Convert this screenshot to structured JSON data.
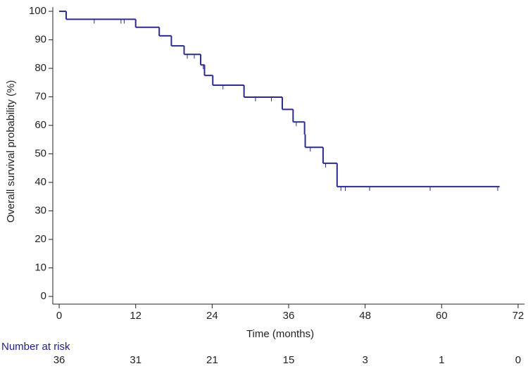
{
  "chart_data": {
    "type": "kaplan-meier",
    "xlabel": "Time (months)",
    "ylabel": "Overall survival probability (%)",
    "xlim": [
      -1,
      73
    ],
    "ylim": [
      -2.7,
      101.5
    ],
    "xticks": [
      0,
      12,
      24,
      36,
      48,
      60,
      72
    ],
    "yticks": [
      0,
      10,
      20,
      30,
      40,
      50,
      60,
      70,
      80,
      90,
      100
    ],
    "color": "#2b2b8c",
    "x": [
      0,
      1.1,
      12,
      15.7,
      17.6,
      19.6,
      22.2,
      22.8,
      24.1,
      29,
      35,
      36.7,
      38.5,
      38.6,
      41.4,
      43.6,
      69.1
    ],
    "values": [
      100,
      97.2,
      94.4,
      91.4,
      87.9,
      84.9,
      81.2,
      77.5,
      74.1,
      69.9,
      65.6,
      61.2,
      56.8,
      52.3,
      46.7,
      38.5,
      38.5
    ],
    "censored": {
      "x": [
        5.5,
        9.7,
        10.2,
        20.1,
        21.2,
        22.6,
        25.7,
        30.8,
        33.3,
        37.2,
        39.4,
        41.8,
        44.2,
        44.9,
        48.7,
        58.2,
        68.8
      ],
      "values": [
        97.2,
        97.2,
        97.2,
        84.9,
        84.9,
        81.2,
        74.1,
        69.9,
        69.9,
        61.2,
        52.3,
        46.7,
        38.5,
        38.5,
        38.5,
        38.5,
        38.5
      ]
    },
    "risk_table": {
      "title": "Number at risk",
      "color": "#1e1e8a",
      "values": [
        36,
        31,
        21,
        15,
        3,
        1,
        0
      ]
    }
  }
}
